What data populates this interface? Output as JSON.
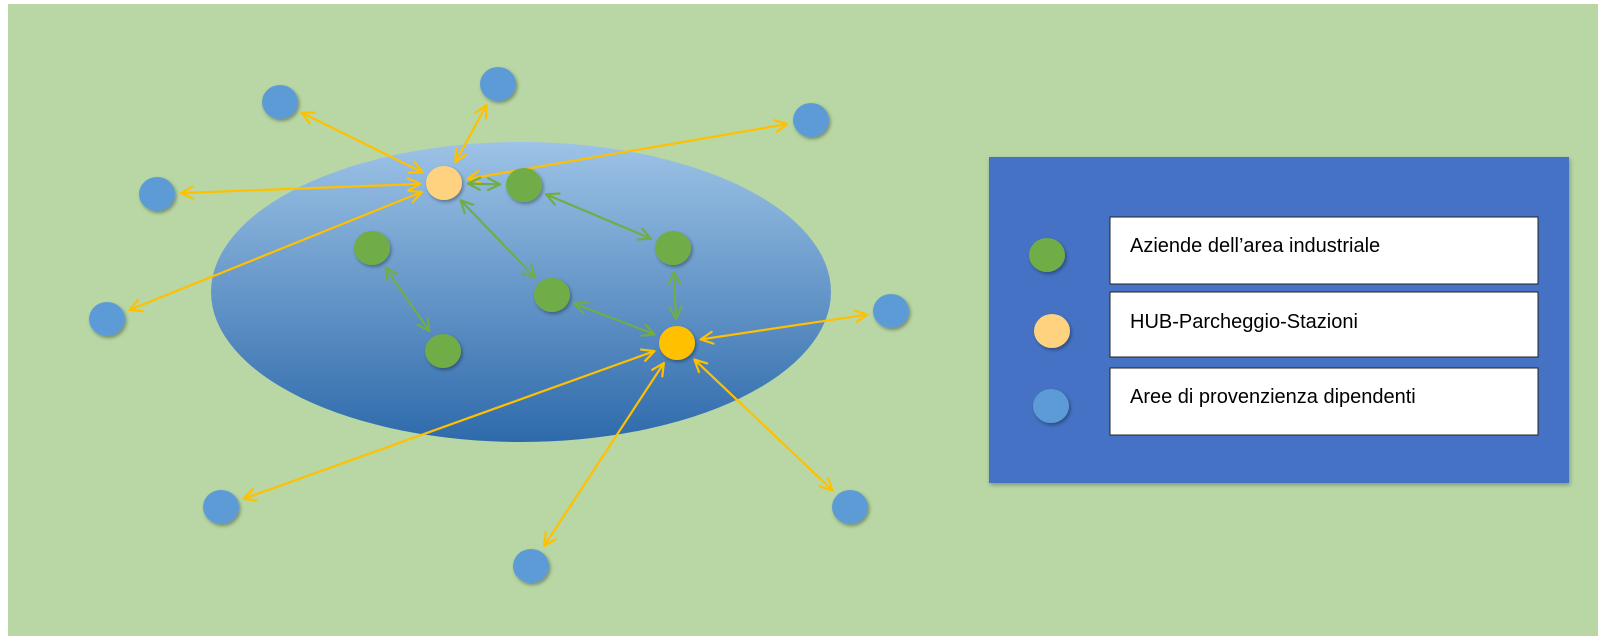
{
  "colors": {
    "background": "#b8d7a4",
    "industrial_area_top": "#9dc3e6",
    "industrial_area_bottom": "#2e6aab",
    "company": "#70ad47",
    "hub_light": "#ffd280",
    "hub_strong": "#ffc000",
    "origin": "#5b9bd5",
    "arrow_hub": "#ffc000",
    "arrow_company": "#70ad47",
    "legend_panel": "#4472c4",
    "legend_box": "#ffffff"
  },
  "diagram": {
    "nodes": [
      {
        "id": "hub-1",
        "type": "hub",
        "variant": "light"
      },
      {
        "id": "hub-2",
        "type": "hub",
        "variant": "strong"
      },
      {
        "id": "company-1",
        "type": "company"
      },
      {
        "id": "company-2",
        "type": "company"
      },
      {
        "id": "company-3",
        "type": "company"
      },
      {
        "id": "company-4",
        "type": "company"
      },
      {
        "id": "company-5",
        "type": "company"
      },
      {
        "id": "origin-1",
        "type": "origin"
      },
      {
        "id": "origin-2",
        "type": "origin"
      },
      {
        "id": "origin-3",
        "type": "origin"
      },
      {
        "id": "origin-4",
        "type": "origin"
      },
      {
        "id": "origin-5",
        "type": "origin"
      },
      {
        "id": "origin-6",
        "type": "origin"
      },
      {
        "id": "origin-7",
        "type": "origin"
      },
      {
        "id": "origin-8",
        "type": "origin"
      },
      {
        "id": "origin-9",
        "type": "origin"
      }
    ],
    "links": [
      {
        "from": "hub-1",
        "to": "origin-1",
        "kind": "hub"
      },
      {
        "from": "hub-1",
        "to": "origin-2",
        "kind": "hub"
      },
      {
        "from": "hub-1",
        "to": "origin-3",
        "kind": "hub"
      },
      {
        "from": "hub-1",
        "to": "origin-4",
        "kind": "hub"
      },
      {
        "from": "hub-1",
        "to": "origin-5",
        "kind": "hub"
      },
      {
        "from": "hub-2",
        "to": "origin-6",
        "kind": "hub"
      },
      {
        "from": "hub-2",
        "to": "origin-7",
        "kind": "hub"
      },
      {
        "from": "hub-2",
        "to": "origin-8",
        "kind": "hub"
      },
      {
        "from": "hub-2",
        "to": "origin-9",
        "kind": "hub"
      },
      {
        "from": "hub-1",
        "to": "company-2",
        "kind": "company"
      },
      {
        "from": "hub-1",
        "to": "company-4",
        "kind": "company"
      },
      {
        "from": "company-1",
        "to": "company-3",
        "kind": "company"
      },
      {
        "from": "company-2",
        "to": "company-5",
        "kind": "company"
      },
      {
        "from": "company-4",
        "to": "hub-2",
        "kind": "company"
      },
      {
        "from": "company-5",
        "to": "hub-2",
        "kind": "company"
      }
    ]
  },
  "legend": {
    "items": [
      {
        "type": "company",
        "label": "Aziende dell’area industriale"
      },
      {
        "type": "hub",
        "label": "HUB-Parcheggio-Stazioni"
      },
      {
        "type": "origin",
        "label": "Aree di provenzienza dipendenti"
      }
    ]
  }
}
